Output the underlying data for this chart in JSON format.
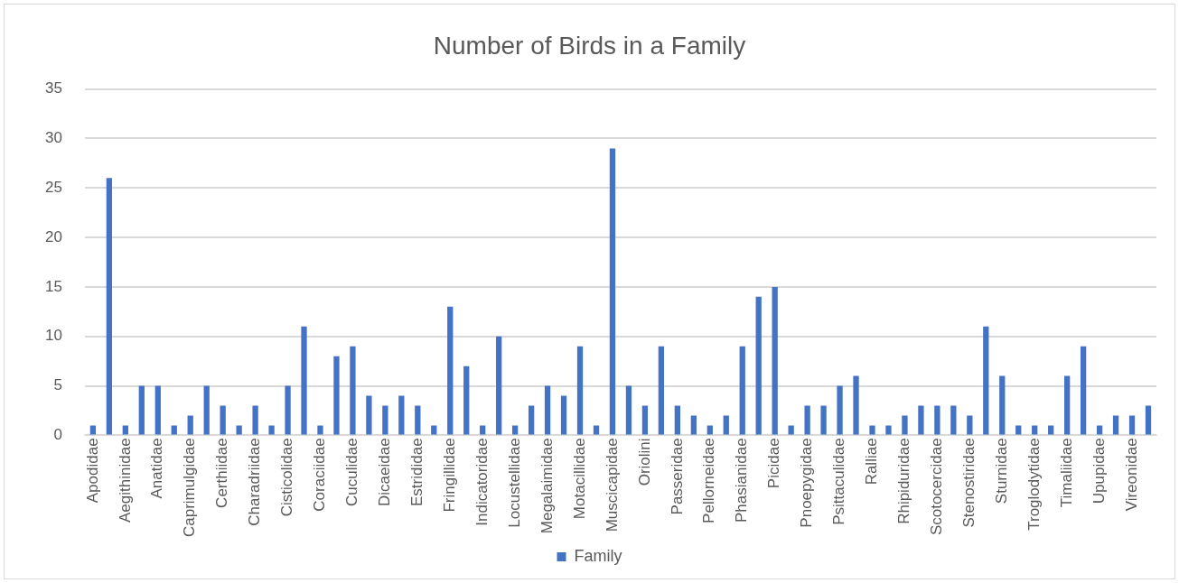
{
  "chart_data": {
    "type": "bar",
    "title": "Number of Birds in a Family",
    "categories": [
      "Apodidae",
      null,
      "Aegithinidae",
      null,
      "Anatidae",
      null,
      "Caprimulgidae",
      null,
      "Certhiidae",
      null,
      "Charadriidae",
      null,
      "Cisticolidae",
      null,
      "Coraciidae",
      null,
      "Cuculidae",
      null,
      "Dicaeidae",
      null,
      "Estrididae",
      null,
      "Fringillidae",
      null,
      "Indicatoridae",
      null,
      "Locustellidae",
      null,
      "Megalaimidae",
      null,
      "Motacillidae",
      null,
      "Muscicapidae",
      null,
      "Oriolini",
      null,
      "Passeridae",
      null,
      "Pellorneidae",
      null,
      "Phasianidae",
      null,
      "Picidae",
      null,
      "Pnoepygidae",
      null,
      "Psittaculidae",
      null,
      "Ralliae",
      null,
      "Rhipiduridae",
      null,
      "Scotocercidae",
      null,
      "Stenostiridae",
      null,
      "Sturnidae",
      null,
      "Troglodytidae",
      null,
      "Timaliidae",
      null,
      "Upupidae",
      null,
      "Vireonidae",
      null
    ],
    "series": [
      {
        "name": "Family",
        "color": "#4472c4",
        "values": [
          1,
          26,
          1,
          5,
          5,
          1,
          2,
          5,
          3,
          1,
          3,
          1,
          5,
          11,
          1,
          8,
          9,
          4,
          3,
          4,
          3,
          1,
          13,
          7,
          1,
          10,
          1,
          3,
          5,
          4,
          9,
          1,
          29,
          5,
          3,
          9,
          3,
          2,
          1,
          2,
          9,
          14,
          15,
          1,
          3,
          3,
          5,
          6,
          1,
          1,
          2,
          3,
          3,
          3,
          2,
          11,
          6,
          1,
          1,
          1,
          6,
          9,
          1,
          2,
          2,
          3
        ]
      }
    ],
    "ylim": [
      0,
      35
    ],
    "yticks": [
      0,
      5,
      10,
      15,
      20,
      25,
      30,
      35
    ],
    "grid": "y",
    "legend": "bottom"
  }
}
